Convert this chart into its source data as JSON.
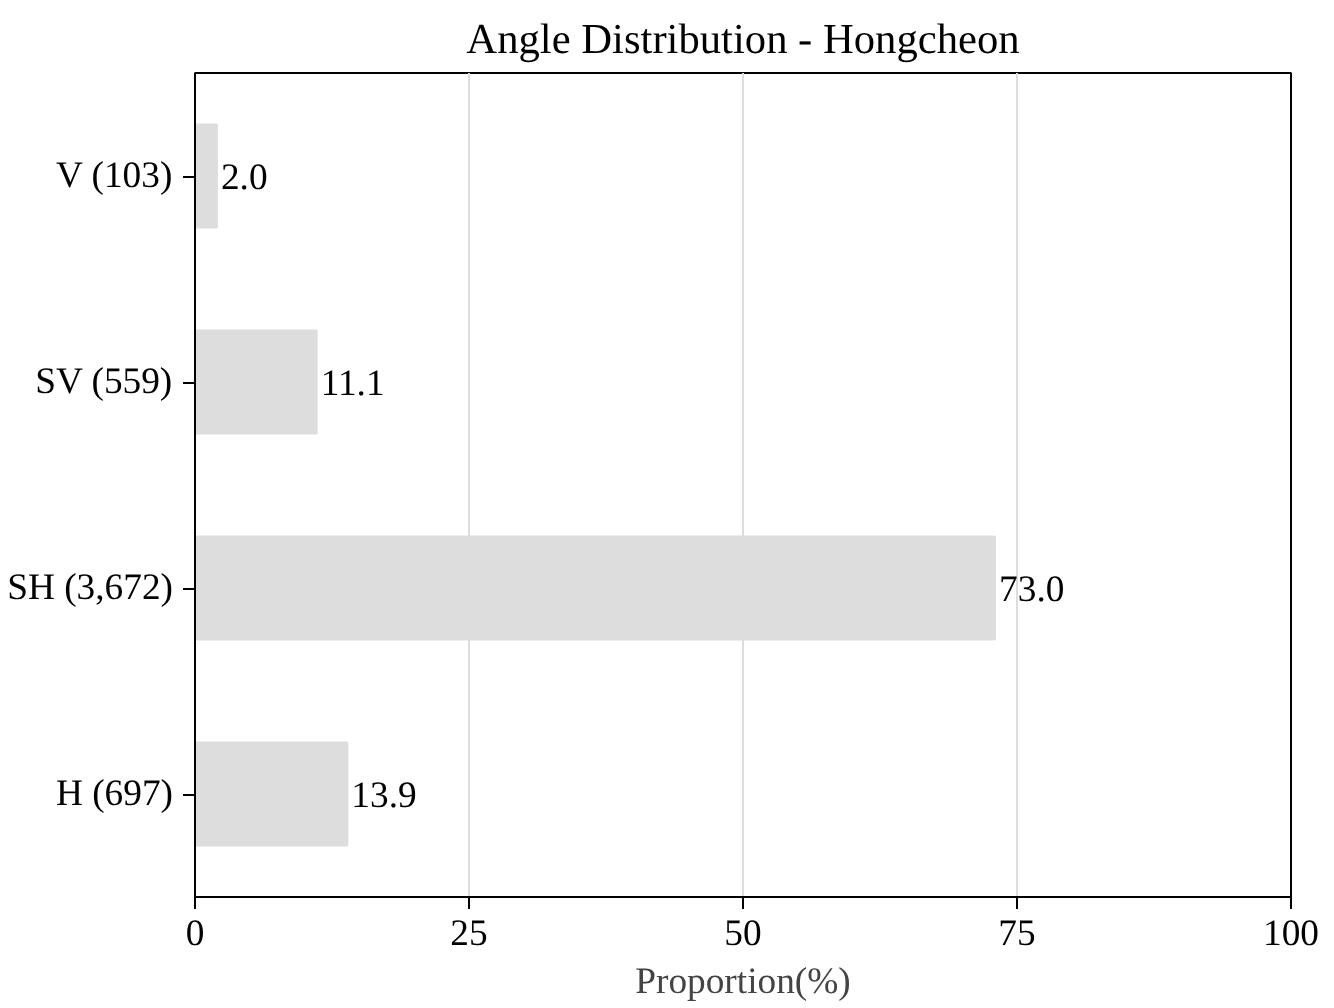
{
  "chart_data": {
    "type": "bar",
    "orientation": "horizontal",
    "title": "Angle Distribution - Hongcheon",
    "xlabel": "Proportion(%)",
    "categories": [
      "V (103)",
      "SV (559)",
      "SH (3,672)",
      "H (697)"
    ],
    "values": [
      2.0,
      11.1,
      73.0,
      13.9
    ],
    "value_labels": [
      "2.0",
      "11.1",
      "73.0",
      "13.9"
    ],
    "color": "#dddddd",
    "xlim": [
      0,
      100
    ],
    "xticks": [
      0,
      25,
      50,
      75,
      100
    ],
    "grid": "x"
  }
}
